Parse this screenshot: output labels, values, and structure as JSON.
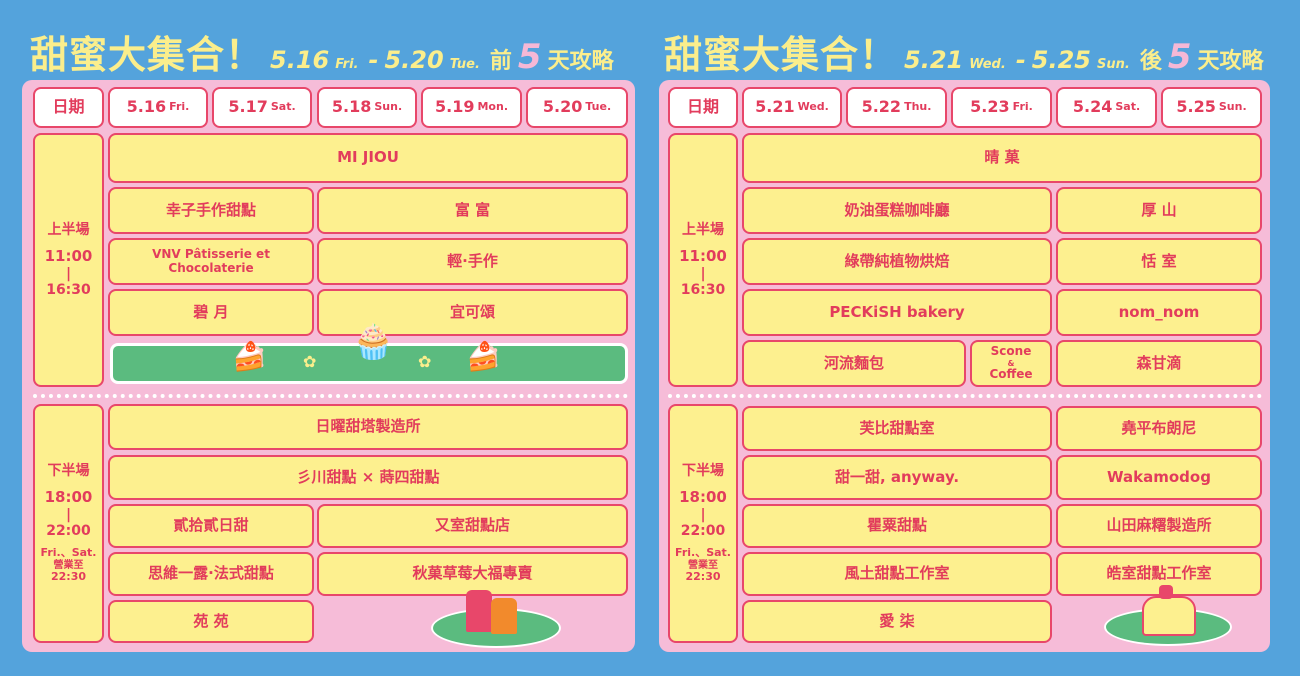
{
  "left": {
    "title": {
      "main": "甜蜜大集合！",
      "start": "5.16",
      "start_day": "Fri.",
      "sep": "-",
      "end": "5.20",
      "end_day": "Tue.",
      "prefix": "前",
      "count": "5",
      "suffix": "天攻略"
    },
    "header_label": "日期",
    "days": [
      {
        "date": "5.16",
        "day": "Fri."
      },
      {
        "date": "5.17",
        "day": "Sat."
      },
      {
        "date": "5.18",
        "day": "Sun."
      },
      {
        "date": "5.19",
        "day": "Mon."
      },
      {
        "date": "5.20",
        "day": "Tue."
      }
    ],
    "morning": {
      "label": "上半場",
      "start": "11:00",
      "end": "16:30",
      "vendors": [
        "MI JIOU",
        "幸子手作甜點",
        "富 富",
        "VNV Pâtisserie et Chocolaterie",
        "輕·手作",
        "碧 月",
        "宜可頌"
      ]
    },
    "evening": {
      "label": "下半場",
      "start": "18:00",
      "end": "22:00",
      "note1": "Fri.、Sat.",
      "note2": "營業至",
      "note3": "22:30",
      "vendors": [
        "日曜甜塔製造所",
        "彡川甜點 × 蒔四甜點",
        "貳拾貳日甜",
        "又室甜點店",
        "思維一露·法式甜點",
        "秋菓草莓大福專賣",
        "苑 苑"
      ]
    }
  },
  "right": {
    "title": {
      "main": "甜蜜大集合！",
      "start": "5.21",
      "start_day": "Wed.",
      "sep": "-",
      "end": "5.25",
      "end_day": "Sun.",
      "prefix": "後",
      "count": "5",
      "suffix": "天攻略"
    },
    "header_label": "日期",
    "days": [
      {
        "date": "5.21",
        "day": "Wed."
      },
      {
        "date": "5.22",
        "day": "Thu."
      },
      {
        "date": "5.23",
        "day": "Fri."
      },
      {
        "date": "5.24",
        "day": "Sat."
      },
      {
        "date": "5.25",
        "day": "Sun."
      }
    ],
    "morning": {
      "label": "上半場",
      "start": "11:00",
      "end": "16:30",
      "vendors": [
        "晴 菓",
        "奶油蛋糕咖啡廳",
        "厚 山",
        "綠帶純植物烘焙",
        "恬 室",
        "PECKiSH bakery",
        "nom_nom",
        "河流麵包",
        "Scone",
        "&",
        "Coffee",
        "森甘滴"
      ]
    },
    "evening": {
      "label": "下半場",
      "start": "18:00",
      "end": "22:00",
      "note1": "Fri.、Sat.",
      "note2": "營業至",
      "note3": "22:30",
      "vendors": [
        "芙比甜點室",
        "堯平布朗尼",
        "甜一甜, anyway.",
        "Wakamodog",
        "瞿粟甜點",
        "山田麻糬製造所",
        "風土甜點工作室",
        "皓室甜點工作室",
        "愛 柒"
      ]
    }
  },
  "colors": {
    "background": "#54a3dc",
    "panel": "#f6bcd8",
    "cell": "#fdf08f",
    "border": "#e8476a",
    "text": "#e23c5c",
    "title": "#fbee8c",
    "green": "#5bbb7f"
  }
}
